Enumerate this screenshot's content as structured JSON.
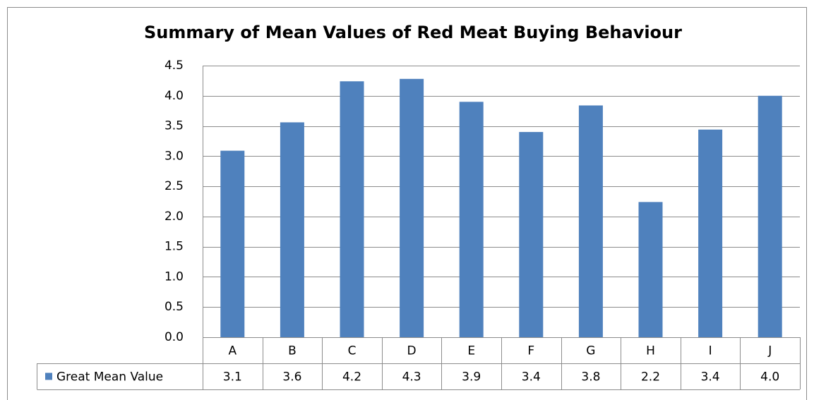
{
  "chart_data": {
    "type": "bar",
    "title": "Summary of Mean Values of Red Meat Buying Behaviour",
    "categories": [
      "A",
      "B",
      "C",
      "D",
      "E",
      "F",
      "G",
      "H",
      "I",
      "J"
    ],
    "series": [
      {
        "name": "Great Mean Value",
        "color": "#4f81bd",
        "values": [
          3.09,
          3.56,
          4.24,
          4.28,
          3.9,
          3.4,
          3.84,
          2.24,
          3.44,
          4.0
        ],
        "value_labels": [
          "3.1",
          "3.6",
          "4.2",
          "4.3",
          "3.9",
          "3.4",
          "3.8",
          "2.2",
          "3.4",
          "4.0"
        ]
      }
    ],
    "ylim": [
      0,
      4.5
    ],
    "yticks": [
      {
        "value": 0,
        "label": "0.0"
      },
      0.5,
      {
        "value": 1,
        "label": "1.0"
      },
      1.5,
      {
        "value": 2,
        "label": "2.0"
      },
      2.5,
      {
        "value": 3,
        "label": "3.0"
      },
      3.5,
      {
        "value": 4,
        "label": "4.0"
      },
      4.5
    ],
    "grid": true
  }
}
